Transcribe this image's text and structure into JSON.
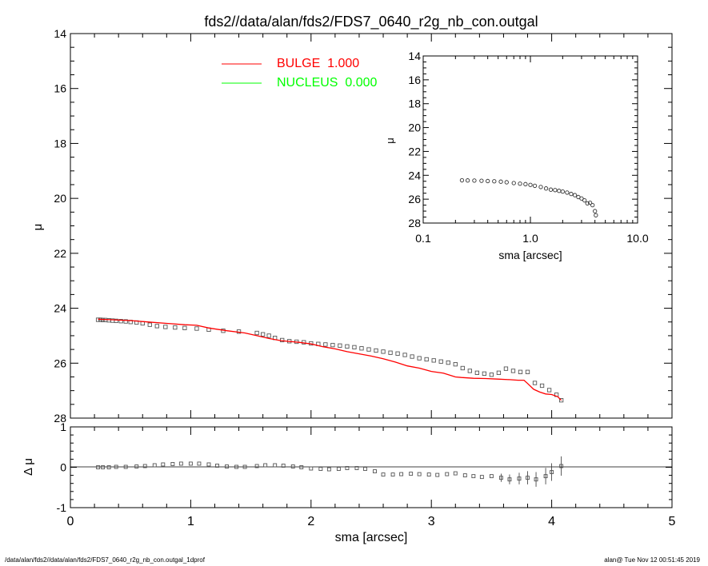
{
  "title": "fds2//data/alan/fds2/FDS7_0640_r2g_nb_con.outgal",
  "footer_left": "/data/alan/fds2//data/alan/fds2/FDS7_0640_r2g_nb_con.outgal_1dprof",
  "footer_right": "alan@  Tue Nov 12 00:51:45 2019",
  "colors": {
    "axis": "#000000",
    "bulge": "#ff0000",
    "nucleus": "#00ff00",
    "data": "#555555"
  },
  "chart_data": [
    {
      "type": "scatter",
      "panel": "main",
      "xlabel": "",
      "ylabel": "μ",
      "xlim": [
        0,
        5
      ],
      "ylim": [
        28,
        14
      ],
      "y_inverted": true,
      "xticks": [],
      "yticks": [
        "14",
        "16",
        "18",
        "20",
        "22",
        "24",
        "26",
        "28"
      ],
      "legend": [
        {
          "name": "BULGE  1.000",
          "color": "#ff0000"
        },
        {
          "name": "NUCLEUS  0.000",
          "color": "#00ff00"
        }
      ],
      "legend_position": "top-center",
      "series": [
        {
          "name": "data",
          "style": "square-markers",
          "x": [
            0.23,
            0.25,
            0.27,
            0.29,
            0.32,
            0.35,
            0.38,
            0.42,
            0.46,
            0.5,
            0.55,
            0.6,
            0.66,
            0.72,
            0.79,
            0.87,
            0.95,
            1.05,
            1.15,
            1.27,
            1.4,
            1.55,
            1.6,
            1.65,
            1.7,
            1.76,
            1.82,
            1.88,
            1.94,
            2.0,
            2.06,
            2.12,
            2.18,
            2.24,
            2.3,
            2.36,
            2.42,
            2.48,
            2.54,
            2.6,
            2.66,
            2.72,
            2.78,
            2.84,
            2.9,
            2.96,
            3.02,
            3.08,
            3.14,
            3.2,
            3.26,
            3.32,
            3.38,
            3.44,
            3.5,
            3.56,
            3.62,
            3.68,
            3.74,
            3.8,
            3.86,
            3.92,
            3.98,
            4.04,
            4.08
          ],
          "y": [
            24.42,
            24.42,
            24.43,
            24.43,
            24.44,
            24.45,
            24.46,
            24.47,
            24.48,
            24.5,
            24.52,
            24.55,
            24.6,
            24.65,
            24.68,
            24.7,
            24.72,
            24.74,
            24.78,
            24.82,
            24.85,
            24.9,
            24.95,
            25.0,
            25.08,
            25.16,
            25.2,
            25.22,
            25.24,
            25.28,
            25.3,
            25.32,
            25.34,
            25.36,
            25.39,
            25.42,
            25.46,
            25.5,
            25.54,
            25.58,
            25.62,
            25.65,
            25.7,
            25.76,
            25.82,
            25.86,
            25.9,
            25.94,
            25.98,
            26.04,
            26.18,
            26.28,
            26.35,
            26.38,
            26.42,
            26.35,
            26.2,
            26.28,
            26.32,
            26.32,
            26.72,
            26.82,
            26.98,
            27.15,
            27.35
          ]
        },
        {
          "name": "BULGE  1.000",
          "style": "line",
          "color": "#ff0000",
          "x": [
            0.23,
            0.35,
            0.5,
            0.65,
            0.8,
            0.95,
            1.05,
            1.15,
            1.3,
            1.45,
            1.55,
            1.65,
            1.75,
            1.9,
            2.0,
            2.1,
            2.2,
            2.3,
            2.4,
            2.5,
            2.6,
            2.7,
            2.8,
            2.9,
            3.0,
            3.1,
            3.2,
            3.25,
            3.35,
            3.45,
            3.55,
            3.65,
            3.72,
            3.77,
            3.8,
            3.85,
            3.9,
            3.95,
            4.0,
            4.05,
            4.08
          ],
          "y": [
            24.4,
            24.42,
            24.45,
            24.5,
            24.55,
            24.6,
            24.62,
            24.72,
            24.82,
            24.9,
            25.0,
            25.1,
            25.18,
            25.24,
            25.3,
            25.4,
            25.48,
            25.58,
            25.66,
            25.74,
            25.84,
            25.96,
            26.1,
            26.18,
            26.3,
            26.36,
            26.5,
            26.52,
            26.55,
            26.56,
            26.58,
            26.6,
            26.62,
            26.62,
            26.74,
            26.95,
            27.05,
            27.12,
            27.14,
            27.22,
            27.35
          ]
        }
      ]
    },
    {
      "type": "scatter",
      "panel": "inset",
      "xlabel": "sma [arcsec]",
      "ylabel": "μ",
      "x_scale": "log",
      "xlim": [
        0.1,
        10.0
      ],
      "ylim": [
        28,
        14
      ],
      "y_inverted": true,
      "xticks": [
        "0.1",
        "1.0",
        "10.0"
      ],
      "yticks": [
        "14",
        "16",
        "18",
        "20",
        "22",
        "24",
        "26",
        "28"
      ],
      "series": [
        {
          "name": "data",
          "style": "circle-markers",
          "x": [
            0.23,
            0.26,
            0.3,
            0.35,
            0.4,
            0.46,
            0.53,
            0.6,
            0.7,
            0.8,
            0.9,
            1.0,
            1.1,
            1.25,
            1.4,
            1.55,
            1.7,
            1.85,
            2.0,
            2.2,
            2.4,
            2.6,
            2.8,
            3.0,
            3.2,
            3.4,
            3.6,
            3.8,
            4.0,
            4.08
          ],
          "y": [
            24.42,
            24.43,
            24.44,
            24.46,
            24.48,
            24.5,
            24.53,
            24.58,
            24.65,
            24.7,
            24.74,
            24.8,
            24.88,
            24.98,
            25.1,
            25.2,
            25.24,
            25.3,
            25.36,
            25.45,
            25.56,
            25.66,
            25.82,
            25.94,
            26.1,
            26.35,
            26.3,
            26.5,
            27.0,
            27.35
          ]
        }
      ]
    },
    {
      "type": "scatter",
      "panel": "residual",
      "xlabel": "sma [arcsec]",
      "ylabel": "Δ μ",
      "xlim": [
        0,
        5
      ],
      "ylim": [
        -1,
        1
      ],
      "xticks": [
        "0",
        "1",
        "2",
        "3",
        "4",
        "5"
      ],
      "yticks": [
        "1",
        "0",
        "-1"
      ],
      "series": [
        {
          "name": "residuals",
          "style": "square-markers",
          "x": [
            0.23,
            0.27,
            0.32,
            0.38,
            0.46,
            0.55,
            0.62,
            0.7,
            0.77,
            0.85,
            0.92,
            1.0,
            1.07,
            1.15,
            1.22,
            1.3,
            1.38,
            1.45,
            1.55,
            1.62,
            1.7,
            1.77,
            1.85,
            1.92,
            2.0,
            2.08,
            2.15,
            2.23,
            2.3,
            2.38,
            2.45,
            2.53,
            2.6,
            2.68,
            2.75,
            2.83,
            2.9,
            2.98,
            3.05,
            3.13,
            3.2,
            3.28,
            3.35,
            3.42,
            3.5,
            3.58,
            3.65,
            3.73,
            3.8,
            3.87,
            3.95,
            4.0,
            4.08
          ],
          "y": [
            0.0,
            0.0,
            0.0,
            0.01,
            0.01,
            0.02,
            0.03,
            0.05,
            0.07,
            0.08,
            0.09,
            0.09,
            0.09,
            0.07,
            0.04,
            0.02,
            0.01,
            0.01,
            0.03,
            0.05,
            0.05,
            0.04,
            0.02,
            0.0,
            -0.03,
            -0.04,
            -0.05,
            -0.04,
            -0.02,
            -0.02,
            -0.04,
            -0.1,
            -0.18,
            -0.18,
            -0.17,
            -0.16,
            -0.17,
            -0.18,
            -0.19,
            -0.17,
            -0.15,
            -0.2,
            -0.22,
            -0.24,
            -0.22,
            -0.26,
            -0.3,
            -0.28,
            -0.26,
            -0.3,
            -0.22,
            -0.12,
            0.03
          ]
        }
      ]
    }
  ]
}
